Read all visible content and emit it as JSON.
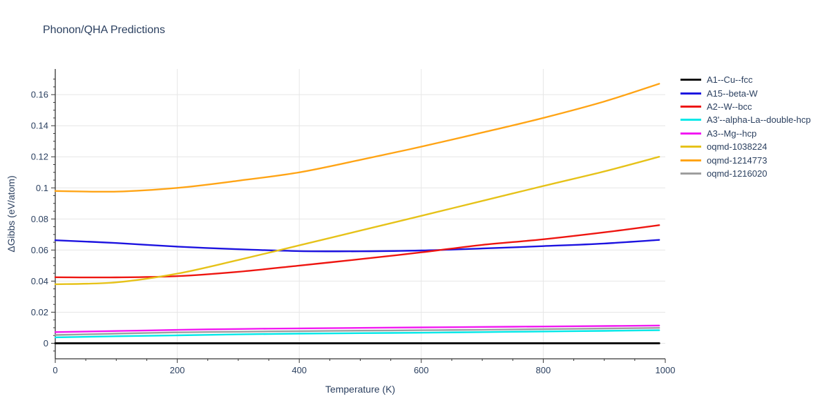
{
  "chart_data": {
    "type": "line",
    "title": "Phonon/QHA Predictions",
    "xlabel": "Temperature (K)",
    "ylabel": "ΔGibbs (eV/atom)",
    "xlim": [
      0,
      1000
    ],
    "ylim": [
      -0.01,
      0.1765
    ],
    "grid": true,
    "legend_position": "right-outside",
    "x": [
      0,
      100,
      200,
      300,
      400,
      500,
      600,
      700,
      800,
      900,
      990
    ],
    "xtick_values": [
      0,
      200,
      400,
      600,
      800,
      1000
    ],
    "xtick_labels": [
      "0",
      "200",
      "400",
      "600",
      "800",
      "1000"
    ],
    "xminor_step": 50,
    "ytick_values": [
      0,
      0.02,
      0.04,
      0.06,
      0.08,
      0.1,
      0.12,
      0.14,
      0.16
    ],
    "ytick_labels": [
      "0",
      "0.02",
      "0.04",
      "0.06",
      "0.08",
      "0.1",
      "0.12",
      "0.14",
      "0.16"
    ],
    "yminor_step": 0.005,
    "series": [
      {
        "name": "A1--Cu--fcc",
        "color": "#111111",
        "width": 3,
        "values": [
          0,
          0,
          0,
          0,
          0,
          0,
          0,
          0,
          0,
          0,
          0
        ]
      },
      {
        "name": "A15--beta-W",
        "color": "#1c12e0",
        "width": 2.4,
        "values": [
          0.0663,
          0.0645,
          0.0622,
          0.0605,
          0.0593,
          0.0592,
          0.0597,
          0.061,
          0.0625,
          0.0642,
          0.0665
        ]
      },
      {
        "name": "A2--W--bcc",
        "color": "#ee1510",
        "width": 2.4,
        "values": [
          0.0425,
          0.0424,
          0.0432,
          0.046,
          0.05,
          0.0541,
          0.0585,
          0.0633,
          0.0669,
          0.0714,
          0.076
        ]
      },
      {
        "name": "A3'--alpha-La--double-hcp",
        "color": "#00e8e8",
        "width": 2.4,
        "values": [
          0.0038,
          0.0045,
          0.0051,
          0.0057,
          0.0062,
          0.0065,
          0.0068,
          0.0072,
          0.0076,
          0.008,
          0.0084
        ]
      },
      {
        "name": "A3--Mg--hcp",
        "color": "#f218f2",
        "width": 2.4,
        "values": [
          0.0072,
          0.0079,
          0.0086,
          0.0092,
          0.0096,
          0.0099,
          0.0102,
          0.0105,
          0.0108,
          0.0111,
          0.0114
        ]
      },
      {
        "name": "oqmd-1038224",
        "color": "#e6c219",
        "width": 2.4,
        "values": [
          0.038,
          0.0392,
          0.0448,
          0.0536,
          0.063,
          0.0725,
          0.082,
          0.0916,
          0.1012,
          0.1106,
          0.12
        ]
      },
      {
        "name": "oqmd-1214773",
        "color": "#ffa415",
        "width": 2.4,
        "values": [
          0.098,
          0.0976,
          0.1,
          0.1046,
          0.11,
          0.118,
          0.1265,
          0.1356,
          0.145,
          0.1556,
          0.167
        ]
      },
      {
        "name": "oqmd-1216020",
        "color": "#9e9e9e",
        "width": 2.4,
        "values": [
          0.0053,
          0.0062,
          0.007,
          0.0074,
          0.0078,
          0.0081,
          0.0084,
          0.0087,
          0.0091,
          0.0095,
          0.0099
        ]
      }
    ]
  },
  "colors": {
    "text": "#2a3f5f",
    "grid": "#e6e6e6",
    "axis": "#333333",
    "background": "#ffffff"
  }
}
